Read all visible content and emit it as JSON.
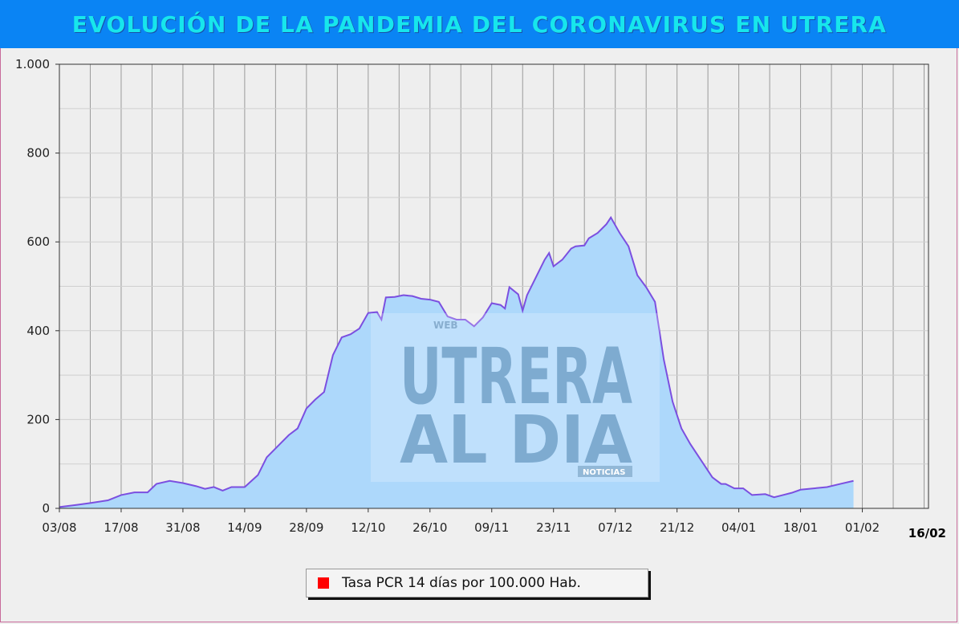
{
  "title": "EVOLUCIÓN DE LA PANDEMIA DEL CORONAVIRUS EN UTRERA",
  "watermark": {
    "web": "WEB",
    "line1": "UTRERA",
    "line2": "AL DIA",
    "noticias": "NOTICIAS"
  },
  "colors": {
    "area_fill": "#add8fb",
    "line": "#7b4fe0",
    "highlight": "#ff0000",
    "grid": "#9a9a9a",
    "plot_bg": "#eeeeee"
  },
  "chart_data": {
    "type": "area",
    "title": "EVOLUCIÓN DE LA PANDEMIA DEL CORONAVIRUS EN UTRERA",
    "xlabel": "",
    "ylabel": "",
    "ylim": [
      0,
      1000
    ],
    "yticks": [
      {
        "value": 0,
        "label": "0"
      },
      {
        "value": 200,
        "label": "200"
      },
      {
        "value": 400,
        "label": "400"
      },
      {
        "value": 600,
        "label": "600"
      },
      {
        "value": 800,
        "label": "800"
      },
      {
        "value": 1000,
        "label": "1.000"
      }
    ],
    "xrange": [
      "2020-08-03",
      "2021-02-16"
    ],
    "xticks": [
      {
        "date": "2020-08-03",
        "label": "03/08"
      },
      {
        "date": "2020-08-17",
        "label": "17/08"
      },
      {
        "date": "2020-08-31",
        "label": "31/08"
      },
      {
        "date": "2020-09-14",
        "label": "14/09"
      },
      {
        "date": "2020-09-28",
        "label": "28/09"
      },
      {
        "date": "2020-10-12",
        "label": "12/10"
      },
      {
        "date": "2020-10-26",
        "label": "26/10"
      },
      {
        "date": "2020-11-09",
        "label": "09/11"
      },
      {
        "date": "2020-11-23",
        "label": "23/11"
      },
      {
        "date": "2020-12-07",
        "label": "07/12"
      },
      {
        "date": "2020-12-21",
        "label": "21/12"
      },
      {
        "date": "2021-01-04",
        "label": "04/01"
      },
      {
        "date": "2021-01-18",
        "label": "18/01"
      },
      {
        "date": "2021-02-01",
        "label": "01/02"
      }
    ],
    "last_label": {
      "date": "2021-02-16",
      "label": "16/02"
    },
    "grid": true,
    "legend": {
      "position": "bottom-center",
      "entries": [
        {
          "name": "Tasa PCR 14 días por 100.000 Hab.",
          "color": "#ff0000"
        }
      ]
    },
    "highlight_from": "2021-02-01",
    "series": [
      {
        "name": "Tasa PCR 14 días por 100.000 Hab.",
        "points": [
          [
            "2020-08-03",
            3
          ],
          [
            "2020-08-07",
            8
          ],
          [
            "2020-08-10",
            12
          ],
          [
            "2020-08-14",
            18
          ],
          [
            "2020-08-17",
            30
          ],
          [
            "2020-08-20",
            36
          ],
          [
            "2020-08-23",
            36
          ],
          [
            "2020-08-25",
            55
          ],
          [
            "2020-08-28",
            62
          ],
          [
            "2020-08-31",
            57
          ],
          [
            "2020-09-03",
            50
          ],
          [
            "2020-09-05",
            44
          ],
          [
            "2020-09-07",
            48
          ],
          [
            "2020-09-09",
            40
          ],
          [
            "2020-09-11",
            48
          ],
          [
            "2020-09-14",
            48
          ],
          [
            "2020-09-17",
            75
          ],
          [
            "2020-09-19",
            115
          ],
          [
            "2020-09-22",
            145
          ],
          [
            "2020-09-24",
            165
          ],
          [
            "2020-09-26",
            180
          ],
          [
            "2020-09-28",
            225
          ],
          [
            "2020-09-30",
            245
          ],
          [
            "2020-10-02",
            262
          ],
          [
            "2020-10-04",
            345
          ],
          [
            "2020-10-06",
            385
          ],
          [
            "2020-10-08",
            392
          ],
          [
            "2020-10-10",
            405
          ],
          [
            "2020-10-12",
            440
          ],
          [
            "2020-10-14",
            442
          ],
          [
            "2020-10-15",
            425
          ],
          [
            "2020-10-16",
            475
          ],
          [
            "2020-10-18",
            476
          ],
          [
            "2020-10-20",
            480
          ],
          [
            "2020-10-22",
            478
          ],
          [
            "2020-10-24",
            472
          ],
          [
            "2020-10-26",
            470
          ],
          [
            "2020-10-28",
            465
          ],
          [
            "2020-10-30",
            432
          ],
          [
            "2020-11-01",
            425
          ],
          [
            "2020-11-03",
            425
          ],
          [
            "2020-11-05",
            410
          ],
          [
            "2020-11-07",
            430
          ],
          [
            "2020-11-09",
            462
          ],
          [
            "2020-11-11",
            458
          ],
          [
            "2020-11-12",
            450
          ],
          [
            "2020-11-13",
            498
          ],
          [
            "2020-11-15",
            482
          ],
          [
            "2020-11-16",
            445
          ],
          [
            "2020-11-17",
            480
          ],
          [
            "2020-11-19",
            520
          ],
          [
            "2020-11-21",
            560
          ],
          [
            "2020-11-22",
            575
          ],
          [
            "2020-11-23",
            545
          ],
          [
            "2020-11-25",
            560
          ],
          [
            "2020-11-27",
            585
          ],
          [
            "2020-11-28",
            590
          ],
          [
            "2020-11-30",
            592
          ],
          [
            "2020-12-01",
            608
          ],
          [
            "2020-12-03",
            620
          ],
          [
            "2020-12-05",
            640
          ],
          [
            "2020-12-06",
            655
          ],
          [
            "2020-12-08",
            620
          ],
          [
            "2020-12-10",
            590
          ],
          [
            "2020-12-12",
            525
          ],
          [
            "2020-12-14",
            498
          ],
          [
            "2020-12-16",
            465
          ],
          [
            "2020-12-18",
            335
          ],
          [
            "2020-12-20",
            240
          ],
          [
            "2020-12-22",
            180
          ],
          [
            "2020-12-24",
            145
          ],
          [
            "2020-12-27",
            100
          ],
          [
            "2020-12-29",
            70
          ],
          [
            "2021-01-01",
            55
          ],
          [
            "2021-01-03",
            45
          ],
          [
            "2021-01-05",
            45
          ],
          [
            "2021-01-07",
            30
          ],
          [
            "2021-01-10",
            32
          ],
          [
            "2021-01-12",
            25
          ],
          [
            "2021-01-14",
            30
          ],
          [
            "2021-01-16",
            35
          ],
          [
            "2021-01-18",
            42
          ],
          [
            "2021-01-21",
            45
          ],
          [
            "2021-01-24",
            48
          ],
          [
            "2021-01-27",
            55
          ],
          [
            "2021-01-30",
            62
          ],
          [
            "2020-12-31",
            55
          ]
        ],
        "points_order": "sorted_by_date"
      }
    ]
  }
}
